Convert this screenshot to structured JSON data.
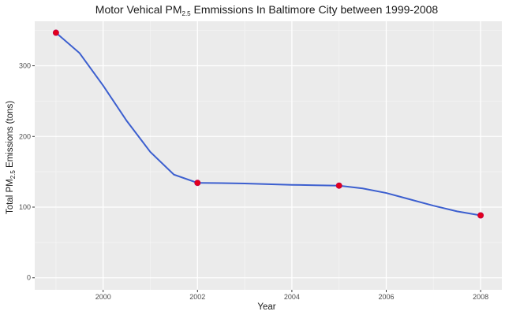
{
  "chart_data": {
    "type": "line",
    "title": {
      "prefix": "Motor Vehical PM",
      "sub": "2.5",
      "suffix": " Emmissions In Baltimore City between 1999-2008"
    },
    "xlabel": "Year",
    "ylabel": {
      "prefix": "Total PM",
      "sub": "2.5",
      "suffix": " Emissions (tons)"
    },
    "xlim": [
      1998.55,
      2008.45
    ],
    "ylim": [
      -17,
      363
    ],
    "x_ticks": [
      2000,
      2002,
      2004,
      2006,
      2008
    ],
    "x_tick_labels": [
      "2000",
      "2002",
      "2004",
      "2006",
      "2008"
    ],
    "y_ticks": [
      0,
      100,
      200,
      300
    ],
    "y_tick_labels": [
      "0",
      "100",
      "200",
      "300"
    ],
    "grid": true,
    "series": [
      {
        "x": [
          1999,
          2002,
          2005,
          2008
        ],
        "y": [
          346.8,
          134.3,
          130.4,
          88.3
        ],
        "point_color": "#e3001b",
        "point_edge_color": "#c0004a"
      }
    ],
    "smooth_curve": {
      "color": "#3c5fcf",
      "x": [
        1999,
        1999.5,
        2000,
        2000.5,
        2001,
        2001.5,
        2002,
        2002.5,
        2003,
        2003.5,
        2004,
        2004.5,
        2005,
        2005.5,
        2006,
        2006.5,
        2007,
        2007.5,
        2008
      ],
      "y": [
        346.8,
        318,
        272,
        222,
        178,
        146,
        134.3,
        134,
        133.5,
        132.5,
        131.5,
        131,
        130.4,
        126.5,
        120,
        111,
        102,
        94,
        88.3
      ]
    },
    "colors": {
      "panel": "#ebebeb",
      "grid_major": "#ffffff",
      "grid_minor": "#f5f5f5"
    }
  }
}
